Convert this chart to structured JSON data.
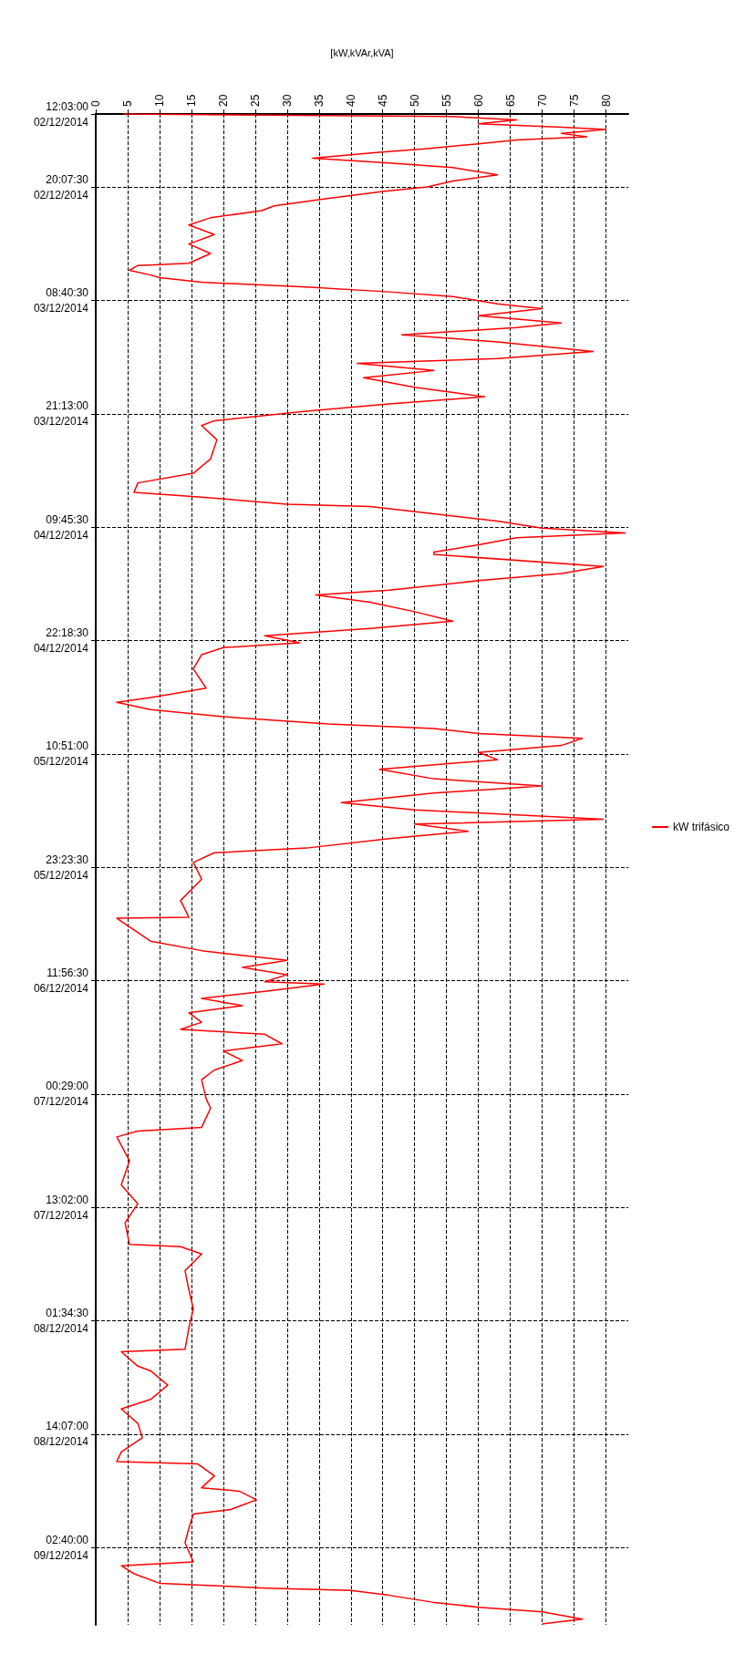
{
  "chart_data": {
    "type": "line",
    "orientation": "horizontal",
    "xlabel": "[kW,kVAr,kVA]",
    "xlim": [
      0,
      83.5
    ],
    "xticks": [
      0,
      5,
      10,
      15,
      20,
      25,
      30,
      35,
      40,
      45,
      50,
      55,
      60,
      65,
      70,
      75,
      80
    ],
    "ylim": [
      "2014-12-09T11:12",
      "2014-12-02T12:03"
    ],
    "yticks": [
      {
        "value": "2014-12-02T12:03:00",
        "label": "12:03:00\n02/12/2014"
      },
      {
        "value": "2014-12-02T20:07:30",
        "label": "20:07:30\n02/12/2014"
      },
      {
        "value": "2014-12-03T08:40:30",
        "label": "08:40:30\n03/12/2014"
      },
      {
        "value": "2014-12-03T21:13:00",
        "label": "21:13:00\n03/12/2014"
      },
      {
        "value": "2014-12-04T09:45:30",
        "label": "09:45:30\n04/12/2014"
      },
      {
        "value": "2014-12-04T22:18:30",
        "label": "22:18:30\n04/12/2014"
      },
      {
        "value": "2014-12-05T10:51:00",
        "label": "10:51:00\n05/12/2014"
      },
      {
        "value": "2014-12-05T23:23:30",
        "label": "23:23:30\n05/12/2014"
      },
      {
        "value": "2014-12-06T11:56:30",
        "label": "11:56:30\n06/12/2014"
      },
      {
        "value": "2014-12-07T00:29:00",
        "label": "00:29:00\n07/12/2014"
      },
      {
        "value": "2014-12-07T13:02:00",
        "label": "13:02:00\n07/12/2014"
      },
      {
        "value": "2014-12-08T01:34:30",
        "label": "01:34:30\n08/12/2014"
      },
      {
        "value": "2014-12-08T14:07:00",
        "label": "14:07:00\n08/12/2014"
      },
      {
        "value": "2014-12-09T02:40:00",
        "label": "02:40:00\n09/12/2014"
      }
    ],
    "grid": true,
    "legend": "right",
    "marker": "none",
    "line_style": "solid",
    "series": [
      {
        "name": "kW trifásico",
        "color": "#ff0000",
        "x": [
          "2014-12-02T12:03",
          "2014-12-02T12:20",
          "2014-12-02T12:43",
          "2014-12-02T13:08",
          "2014-12-02T13:31",
          "2014-12-02T13:46",
          "2014-12-02T14:11",
          "2014-12-02T14:34",
          "2014-12-02T14:56",
          "2014-12-02T15:21",
          "2014-12-02T15:53",
          "2014-12-02T16:18",
          "2014-12-02T16:56",
          "2014-12-02T17:28",
          "2014-12-02T17:59",
          "2014-12-02T18:47",
          "2014-12-02T19:28",
          "2014-12-02T20:07",
          "2014-12-02T20:38",
          "2014-12-02T21:26",
          "2014-12-02T22:13",
          "2014-12-02T22:45",
          "2014-12-02T23:32",
          "2014-12-03T00:20",
          "2014-12-03T01:23",
          "2014-12-03T02:26",
          "2014-12-03T03:29",
          "2014-12-03T04:34",
          "2014-12-03T04:49",
          "2014-12-03T05:21",
          "2014-12-03T05:52",
          "2014-12-03T06:09",
          "2014-12-03T06:40",
          "2014-12-03T07:12",
          "2014-12-03T07:44",
          "2014-12-03T08:15",
          "2014-12-03T09:03",
          "2014-12-03T09:35",
          "2014-12-03T10:22",
          "2014-12-03T11:10",
          "2014-12-03T11:41",
          "2014-12-03T12:29",
          "2014-12-03T13:16",
          "2014-12-03T14:19",
          "2014-12-03T15:07",
          "2014-12-03T15:39",
          "2014-12-03T16:26",
          "2014-12-03T17:14",
          "2014-12-03T18:17",
          "2014-12-03T19:20",
          "2014-12-03T20:08",
          "2014-12-03T20:56",
          "2014-12-03T21:59",
          "2014-12-03T22:31",
          "2014-12-04T00:06",
          "2014-12-04T02:13",
          "2014-12-04T03:48",
          "2014-12-04T04:52",
          "2014-12-04T05:55",
          "2014-12-04T06:26",
          "2014-12-04T07:14",
          "2014-12-04T07:29",
          "2014-12-04T08:17",
          "2014-12-04T09:05",
          "2014-12-04T09:52",
          "2014-12-04T10:24",
          "2014-12-04T10:56",
          "2014-12-04T11:43",
          "2014-12-04T12:31",
          "2014-12-04T12:47",
          "2014-12-04T14:06",
          "2014-12-04T14:53",
          "2014-12-04T15:41",
          "2014-12-04T16:44",
          "2014-12-04T17:16",
          "2014-12-04T18:04",
          "2014-12-04T19:07",
          "2014-12-04T20:10",
          "2014-12-04T20:58",
          "2014-12-04T21:46",
          "2014-12-04T22:33",
          "2014-12-04T23:05",
          "2014-12-04T23:52",
          "2014-12-05T01:27",
          "2014-12-05T03:34",
          "2014-12-05T04:37",
          "2014-12-05T05:09",
          "2014-12-05T05:57",
          "2014-12-05T06:44",
          "2014-12-05T07:32",
          "2014-12-05T08:03",
          "2014-12-05T08:35",
          "2014-12-05T09:07",
          "2014-12-05T09:55",
          "2014-12-05T10:41",
          "2014-12-05T11:29",
          "2014-12-05T12:33",
          "2014-12-05T13:36",
          "2014-12-05T14:24",
          "2014-12-05T15:11",
          "2014-12-05T16:14",
          "2014-12-05T17:02",
          "2014-12-05T18:05",
          "2014-12-05T18:37",
          "2014-12-05T19:25",
          "2014-12-05T20:13",
          "2014-12-05T21:16",
          "2014-12-05T21:47",
          "2014-12-05T22:51",
          "2014-12-06T00:42",
          "2014-12-06T03:04",
          "2014-12-06T04:55",
          "2014-12-06T05:02",
          "2014-12-06T05:59",
          "2014-12-06T07:34",
          "2014-12-06T08:37",
          "2014-12-06T09:25",
          "2014-12-06T09:41",
          "2014-12-06T10:28",
          "2014-12-06T11:16",
          "2014-12-06T12:03",
          "2014-12-06T12:19",
          "2014-12-06T13:07",
          "2014-12-06T13:54",
          "2014-12-06T14:42",
          "2014-12-06T15:29",
          "2014-12-06T16:32",
          "2014-12-06T17:20",
          "2014-12-06T17:52",
          "2014-12-06T18:55",
          "2014-12-06T19:43",
          "2014-12-06T20:46",
          "2014-12-06T21:49",
          "2014-12-06T22:53",
          "2014-12-07T00:59",
          "2014-12-07T02:03",
          "2014-12-07T04:10",
          "2014-12-07T04:35",
          "2014-12-07T05:13",
          "2014-12-07T07:52",
          "2014-12-07T10:31",
          "2014-12-07T12:37",
          "2014-12-07T14:44",
          "2014-12-07T17:07",
          "2014-12-07T17:22",
          "2014-12-07T18:10",
          "2014-12-07T20:01",
          "2014-12-07T22:08",
          "2014-12-08T00:14",
          "2014-12-08T02:22",
          "2014-12-08T04:43",
          "2014-12-08T04:59",
          "2014-12-08T06:35",
          "2014-12-08T07:06",
          "2014-12-08T08:41",
          "2014-12-08T10:16",
          "2014-12-08T11:19",
          "2014-12-08T12:55",
          "2014-12-08T14:30",
          "2014-12-08T16:05",
          "2014-12-08T17:08",
          "2014-12-08T17:24",
          "2014-12-08T18:43",
          "2014-12-08T20:02",
          "2014-12-08T20:25",
          "2014-12-08T21:22",
          "2014-12-08T22:26",
          "2014-12-08T22:57",
          "2014-12-09T00:32",
          "2014-12-09T02:07",
          "2014-12-09T04:14",
          "2014-12-09T04:40",
          "2014-12-09T05:33",
          "2014-12-09T06:36",
          "2014-12-09T07:08",
          "2014-12-09T07:24",
          "2014-12-09T07:56",
          "2014-12-09T08:43",
          "2014-12-09T09:15",
          "2014-12-09T09:46",
          "2014-12-09T10:34",
          "2014-12-09T11:06"
        ],
        "values": [
          4.3,
          56,
          66,
          60,
          73,
          80,
          73,
          77,
          66,
          60,
          52,
          44,
          34,
          46,
          56,
          63,
          56,
          52,
          45,
          36,
          28,
          26,
          18,
          14.6,
          18.6,
          14.6,
          18,
          14.6,
          6.6,
          5.3,
          8.6,
          10,
          16.6,
          33,
          46,
          56,
          63,
          70,
          60,
          73,
          66,
          48,
          63,
          78,
          63,
          41,
          53,
          42,
          50,
          61,
          46,
          33,
          18.6,
          16.6,
          19,
          18,
          15.3,
          6.6,
          6,
          16.6,
          30,
          43,
          53,
          63,
          70,
          83,
          66,
          60,
          53,
          53,
          79.6,
          73,
          60,
          46,
          34.5,
          43,
          50,
          56,
          43,
          26.5,
          32,
          20,
          16.6,
          15.3,
          17.3,
          8.6,
          3.3,
          8.6,
          20,
          36.5,
          53,
          60,
          76.3,
          73,
          60,
          63,
          44.5,
          53,
          70,
          53,
          38.5,
          50,
          79.6,
          50,
          58.4,
          46,
          33,
          18.6,
          15.3,
          16.6,
          13.3,
          14.6,
          3.3,
          5.3,
          8.6,
          16.6,
          26.5,
          30,
          23,
          30,
          26.5,
          35.8,
          26.5,
          16.6,
          23,
          14.6,
          16.6,
          13.3,
          26.5,
          29.2,
          20,
          23,
          18.6,
          16.6,
          17.3,
          18,
          16.6,
          6.6,
          3.3,
          5.3,
          4,
          6.6,
          4.6,
          5.3,
          13.3,
          16.6,
          14,
          14.6,
          15.3,
          14.6,
          14,
          4,
          6.6,
          8.6,
          11.3,
          8.6,
          4,
          6.6,
          7.3,
          4,
          3.3,
          16,
          18.6,
          16.6,
          22.5,
          25.2,
          21.2,
          15.3,
          14.6,
          14,
          15.3,
          4,
          6,
          10,
          26.5,
          40,
          46,
          53,
          60,
          70,
          76.3,
          70
        ]
      }
    ]
  }
}
